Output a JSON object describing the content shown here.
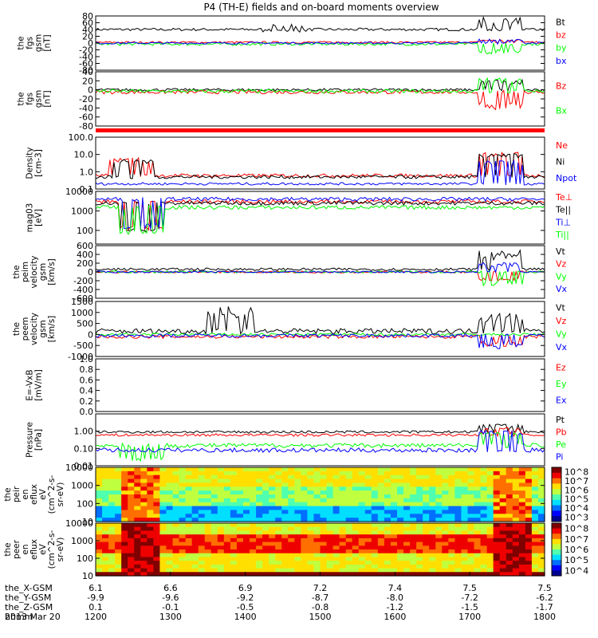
{
  "chart_data": {
    "type": "line",
    "title": "P4 (TH-E) fields and on-board moments overview",
    "x_time_ticks": [
      "1200",
      "1300",
      "1400",
      "1500",
      "1600",
      "1700",
      "1800"
    ],
    "panels": [
      {
        "key": "p1",
        "ylabel": [
          "the",
          "fgs",
          "gsm",
          "[nT]"
        ],
        "ylim": [
          -80,
          80
        ],
        "yticks": [
          -80,
          -60,
          -40,
          -20,
          0,
          20,
          40,
          60,
          80
        ],
        "legend": [
          {
            "text": "Bt",
            "color": "#000000"
          },
          {
            "text": "bz",
            "color": "#ff0000"
          },
          {
            "text": "by",
            "color": "#00ff00"
          },
          {
            "text": "bx",
            "color": "#0000ff"
          }
        ],
        "series": [
          {
            "color": "#000000",
            "base": 40,
            "noise": 4,
            "events": [
              [
                0.42,
                52
              ],
              [
                0.9,
                70
              ]
            ]
          },
          {
            "color": "#ff0000",
            "base": 2,
            "noise": 3,
            "events": [
              [
                0.9,
                10
              ]
            ]
          },
          {
            "color": "#00ff00",
            "base": -3,
            "noise": 4,
            "events": [
              [
                0.9,
                -30
              ]
            ]
          },
          {
            "color": "#0000ff",
            "base": 0,
            "noise": 3,
            "events": [
              [
                0.9,
                12
              ]
            ]
          }
        ]
      },
      {
        "key": "p2",
        "ylabel": [
          "the",
          "fgs",
          "gsm",
          "[nT]"
        ],
        "ylim": [
          -80,
          40
        ],
        "yticks": [
          -80,
          -60,
          -40,
          -20,
          0,
          20,
          40
        ],
        "legend": [
          {
            "text": "Bz",
            "color": "#ff0000"
          },
          {
            "text": "Bx",
            "color": "#00ff00"
          }
        ],
        "series": [
          {
            "color": "#000000",
            "base": 0,
            "noise": 3,
            "events": [
              [
                0.9,
                20
              ]
            ]
          },
          {
            "color": "#ff0000",
            "base": -5,
            "noise": 4,
            "events": [
              [
                0.9,
                -40
              ]
            ]
          },
          {
            "color": "#00ff00",
            "base": -3,
            "noise": 4,
            "events": [
              [
                0.9,
                25
              ]
            ]
          }
        ]
      },
      {
        "key": "p3",
        "ylabel": [
          "Density",
          "[cm-3]"
        ],
        "ylim": [
          0.1,
          100.0
        ],
        "log": true,
        "yticks": [
          0.1,
          1.0,
          10.0,
          100.0
        ],
        "yticklabels": [
          "0.1",
          "1.0",
          "10.0",
          "100.0"
        ],
        "legend": [
          {
            "text": "Ne",
            "color": "#ff0000"
          },
          {
            "text": "Ni",
            "color": "#000000"
          },
          {
            "text": "Npot",
            "color": "#0000ff"
          }
        ],
        "series": [
          {
            "color": "#ff0000",
            "base": 0.6,
            "noise": 0.2,
            "events": [
              [
                0.08,
                6
              ],
              [
                0.9,
                12
              ]
            ]
          },
          {
            "color": "#000000",
            "base": 0.5,
            "noise": 0.2,
            "events": [
              [
                0.08,
                5
              ],
              [
                0.9,
                10
              ]
            ]
          },
          {
            "color": "#0000ff",
            "base": 0.2,
            "noise": 0.15,
            "events": [
              [
                0.9,
                4
              ]
            ]
          }
        ]
      },
      {
        "key": "p4",
        "ylabel": [
          "mag03",
          "[eV]"
        ],
        "ylim": [
          20,
          10000
        ],
        "log": true,
        "yticks": [
          100,
          1000,
          10000
        ],
        "yticklabels": [
          "100",
          "1000",
          "10000"
        ],
        "legend": [
          {
            "text": "Te⊥",
            "color": "#ff0000"
          },
          {
            "text": "Te||",
            "color": "#000000"
          },
          {
            "text": "Ti⊥",
            "color": "#0000ff"
          },
          {
            "text": "Ti||",
            "color": "#00ff00"
          }
        ],
        "series": [
          {
            "color": "#ff0000",
            "base": 3000,
            "noise": 0.2,
            "events": [
              [
                0.1,
                150
              ]
            ]
          },
          {
            "color": "#000000",
            "base": 2500,
            "noise": 0.2,
            "events": [
              [
                0.1,
                120
              ]
            ]
          },
          {
            "color": "#0000ff",
            "base": 4000,
            "noise": 0.2,
            "events": [
              [
                0.1,
                200
              ]
            ]
          },
          {
            "color": "#00ff00",
            "base": 1500,
            "noise": 0.2,
            "events": [
              [
                0.1,
                100
              ]
            ]
          }
        ]
      },
      {
        "key": "p5",
        "ylabel": [
          "the",
          "peim",
          "velocity",
          "gsm",
          "[km/s]"
        ],
        "ylim": [
          -600,
          600
        ],
        "yticks": [
          -600,
          -400,
          -200,
          0,
          200,
          400,
          600
        ],
        "legend": [
          {
            "text": "Vt",
            "color": "#000000"
          },
          {
            "text": "Vz",
            "color": "#ff0000"
          },
          {
            "text": "Vy",
            "color": "#00ff00"
          },
          {
            "text": "Vx",
            "color": "#0000ff"
          }
        ],
        "series": [
          {
            "color": "#000000",
            "base": 60,
            "noise": 30,
            "events": [
              [
                0.9,
                450
              ]
            ]
          },
          {
            "color": "#ff0000",
            "base": 0,
            "noise": 25,
            "events": [
              [
                0.9,
                -200
              ]
            ]
          },
          {
            "color": "#00ff00",
            "base": 0,
            "noise": 25,
            "events": [
              [
                0.9,
                -300
              ]
            ]
          },
          {
            "color": "#0000ff",
            "base": 0,
            "noise": 20,
            "events": [
              [
                0.9,
                200
              ]
            ]
          }
        ]
      },
      {
        "key": "p6",
        "ylabel": [
          "the",
          "peem",
          "velocity",
          "gsm",
          "[km/s]"
        ],
        "ylim": [
          -1000,
          1500
        ],
        "yticks": [
          -1000,
          -500,
          0,
          500,
          1000,
          1500
        ],
        "legend": [
          {
            "text": "Vt",
            "color": "#000000"
          },
          {
            "text": "Vz",
            "color": "#ff0000"
          },
          {
            "text": "Vy",
            "color": "#00ff00"
          },
          {
            "text": "Vx",
            "color": "#0000ff"
          }
        ],
        "series": [
          {
            "color": "#000000",
            "base": 150,
            "noise": 120,
            "events": [
              [
                0.3,
                1200
              ],
              [
                0.9,
                900
              ]
            ]
          },
          {
            "color": "#ff0000",
            "base": -100,
            "noise": 80,
            "events": [
              [
                0.9,
                -500
              ]
            ]
          },
          {
            "color": "#00ff00",
            "base": 0,
            "noise": 60,
            "events": []
          },
          {
            "color": "#0000ff",
            "base": -50,
            "noise": 80,
            "events": [
              [
                0.9,
                -600
              ]
            ]
          }
        ]
      },
      {
        "key": "p7",
        "ylabel": [
          "E=-VxB",
          "[mV/m]"
        ],
        "ylim": [
          0.0,
          1.0
        ],
        "yticks": [
          0.0,
          0.2,
          0.4,
          0.6,
          0.8,
          1.0
        ],
        "yticklabels": [
          "0.0",
          "0.2",
          "0.4",
          "0.6",
          "0.8",
          "1.0"
        ],
        "legend": [
          {
            "text": "Ez",
            "color": "#ff0000"
          },
          {
            "text": "Ey",
            "color": "#00ff00"
          },
          {
            "text": "Ex",
            "color": "#0000ff"
          }
        ],
        "series": []
      },
      {
        "key": "p8",
        "ylabel": [
          "Pressure",
          "[nPa]"
        ],
        "ylim": [
          0.01,
          10
        ],
        "log": true,
        "yticks": [
          0.01,
          0.1,
          1.0
        ],
        "yticklabels": [
          "0.01",
          "0.10",
          "1.00"
        ],
        "legend": [
          {
            "text": "Pt",
            "color": "#000000"
          },
          {
            "text": "Pb",
            "color": "#ff0000"
          },
          {
            "text": "Pe",
            "color": "#00ff00"
          },
          {
            "text": "Pi",
            "color": "#0000ff"
          }
        ],
        "series": [
          {
            "color": "#000000",
            "base": 0.9,
            "noise": 0.15,
            "events": [
              [
                0.9,
                2.5
              ]
            ]
          },
          {
            "color": "#ff0000",
            "base": 0.6,
            "noise": 0.15,
            "events": [
              [
                0.9,
                1.5
              ]
            ]
          },
          {
            "color": "#00ff00",
            "base": 0.15,
            "noise": 0.25,
            "events": [
              [
                0.1,
                0.03
              ],
              [
                0.9,
                0.8
              ]
            ]
          },
          {
            "color": "#0000ff",
            "base": 0.08,
            "noise": 0.25,
            "events": [
              [
                0.9,
                1.0
              ]
            ]
          }
        ]
      },
      {
        "key": "p9",
        "type": "heatmap",
        "ylabel": [
          "the",
          "peir",
          "en",
          "eflux",
          "eV",
          "(cm^2-s-",
          "sr-eV)"
        ],
        "ylim": [
          10,
          10000
        ],
        "log": true,
        "yticks": [
          10,
          100,
          1000,
          10000
        ],
        "yticklabels": [
          "10",
          "100",
          "1000",
          "10000"
        ],
        "colorbar_ticks": [
          "10^3",
          "10^4",
          "10^5",
          "10^6",
          "10^7",
          "10^8"
        ]
      },
      {
        "key": "p10",
        "type": "heatmap",
        "ylabel": [
          "the",
          "peer",
          "en",
          "eflux",
          "eV",
          "(cm^2-s-",
          "sr-eV)"
        ],
        "ylim": [
          10,
          10000
        ],
        "log": true,
        "yticks": [
          10,
          100,
          1000,
          10000
        ],
        "yticklabels": [
          "10",
          "100",
          "1000",
          "10000"
        ],
        "colorbar_ticks": [
          "10^4",
          "10^5",
          "10^6",
          "10^7",
          "10^8"
        ]
      }
    ],
    "ephemeris": [
      {
        "label": "the_X-GSM",
        "values": [
          "6.1",
          "6.6",
          "6.9",
          "7.2",
          "7.4",
          "7.5",
          "7.5"
        ]
      },
      {
        "label": "the_Y-GSM",
        "values": [
          "-9.9",
          "-9.6",
          "-9.2",
          "-8.7",
          "-8.0",
          "-7.2",
          "-6.2"
        ]
      },
      {
        "label": "the_Z-GSM",
        "values": [
          "0.1",
          "-0.1",
          "-0.5",
          "-0.8",
          "-1.2",
          "-1.5",
          "-1.7"
        ]
      },
      {
        "label": "hhmm",
        "values": [
          "1200",
          "1300",
          "1400",
          "1500",
          "1600",
          "1700",
          "1800"
        ]
      }
    ],
    "date": "2013 Mar 20"
  }
}
